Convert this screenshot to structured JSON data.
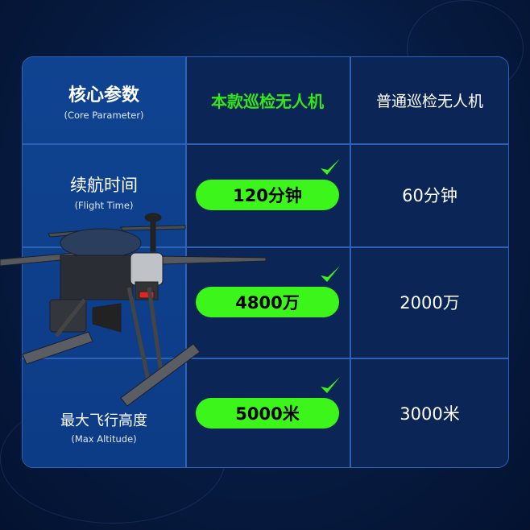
{
  "header": {
    "param_label": "核心参数",
    "param_label_en": "(Core Parameter)",
    "ours": "本款巡检无人机",
    "ordinary": "普通巡检无人机"
  },
  "rows": [
    {
      "label": "续航时间",
      "label_en": "(Flight Time)",
      "ours": "120分钟",
      "ordinary": "60分钟"
    },
    {
      "label": "",
      "label_en": "",
      "ours": "4800万",
      "ordinary": "2000万"
    },
    {
      "label": "最大飞行高度",
      "label_en": "(Max Altitude)",
      "ours": "5000米",
      "ordinary": "3000米"
    }
  ],
  "colors": {
    "highlight": "#3bf51b",
    "background": "#061a3f",
    "accent_border": "#2d62b5"
  },
  "icons": {
    "check": "check-icon"
  }
}
